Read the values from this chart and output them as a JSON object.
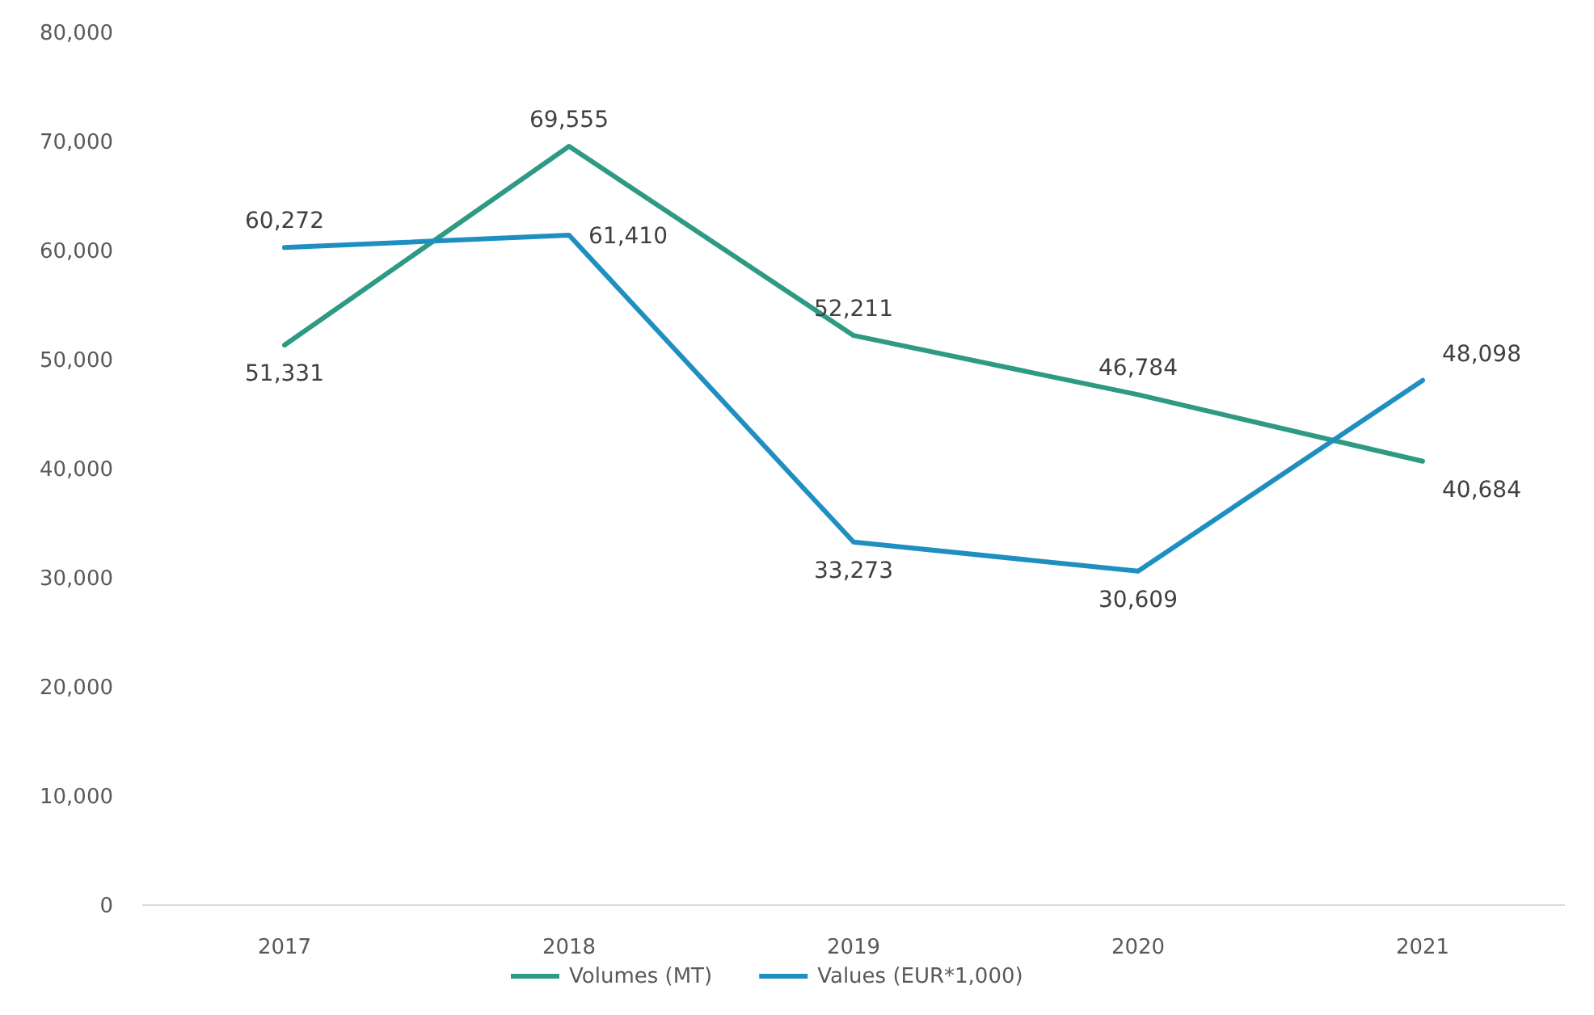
{
  "chart_data": {
    "type": "line",
    "categories": [
      "2017",
      "2018",
      "2019",
      "2020",
      "2021"
    ],
    "series": [
      {
        "name": "Volumes (MT)",
        "color": "#2e9a84",
        "values": [
          51331,
          69555,
          52211,
          46784,
          40684
        ],
        "value_labels": [
          "51,331",
          "69,555",
          "52,211",
          "46,784",
          "40,684"
        ]
      },
      {
        "name": "Values (EUR*1,000)",
        "color": "#1f8fc2",
        "values": [
          60272,
          61410,
          33273,
          30609,
          48098
        ],
        "value_labels": [
          "60,272",
          "61,410",
          "33,273",
          "30,609",
          "48,098"
        ]
      }
    ],
    "ylim": [
      0,
      80000
    ],
    "yticks": [
      0,
      {
        "value": 10000,
        "label": "10,000"
      },
      {
        "value": 20000,
        "label": "20,000"
      },
      {
        "value": 30000,
        "label": "30,000"
      },
      {
        "value": 40000,
        "label": "40,000"
      },
      {
        "value": 50000,
        "label": "50,000"
      },
      {
        "value": 60000,
        "label": "60,000"
      },
      {
        "value": 70000,
        "label": "70,000"
      },
      {
        "value": 80000,
        "label": "80,000"
      }
    ],
    "grid": false,
    "legend": "bottom",
    "marker": "none",
    "line_style": "solid"
  }
}
